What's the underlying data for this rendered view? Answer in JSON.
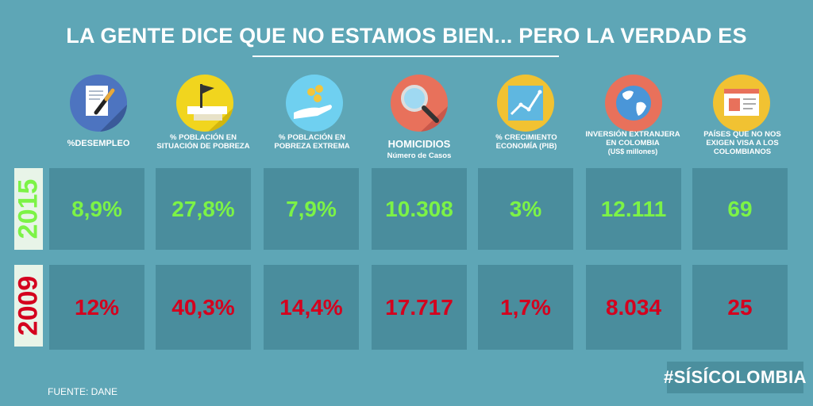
{
  "title": "LA GENTE DICE QUE NO ESTAMOS BIEN... PERO LA VERDAD ES",
  "years": [
    "2015",
    "2009"
  ],
  "indicators": [
    {
      "icon": "document-pen-icon",
      "label": "%DESEMPLEO",
      "sub": "",
      "v2015": "8,9%",
      "v2009": "12%"
    },
    {
      "icon": "flag-icon",
      "label": "% POBLACIÓN EN SITUACIÓN DE POBREZA",
      "sub": "",
      "v2015": "27,8%",
      "v2009": "40,3%"
    },
    {
      "icon": "hand-coins-icon",
      "label": "% POBLACIÓN EN POBREZA EXTREMA",
      "sub": "",
      "v2015": "7,9%",
      "v2009": "14,4%"
    },
    {
      "icon": "magnifier-icon",
      "label": "HOMICIDIOS",
      "sub": "Número de Casos",
      "v2015": "10.308",
      "v2009": "17.717"
    },
    {
      "icon": "growth-chart-icon",
      "label": "% CRECIMIENTO ECONOMÍA (PIB)",
      "sub": "",
      "v2015": "3%",
      "v2009": "1,7%"
    },
    {
      "icon": "globe-icon",
      "label": "INVERSIÓN EXTRANJERA EN COLOMBIA",
      "sub": "(US$ millones)",
      "v2015": "12.111",
      "v2009": "8.034"
    },
    {
      "icon": "passport-icon",
      "label": "PAÍSES QUE NO NOS EXIGEN VISA A LOS COLOMBIANOS",
      "sub": "",
      "v2015": "69",
      "v2009": "25"
    }
  ],
  "source": "FUENTE: DANE",
  "hashtag": "#SÍSÍCOLOMBIA",
  "colors": {
    "background": "#5ea6b6",
    "cell": "#4a8d9d",
    "green": "#7cf346",
    "red": "#d4001e"
  }
}
